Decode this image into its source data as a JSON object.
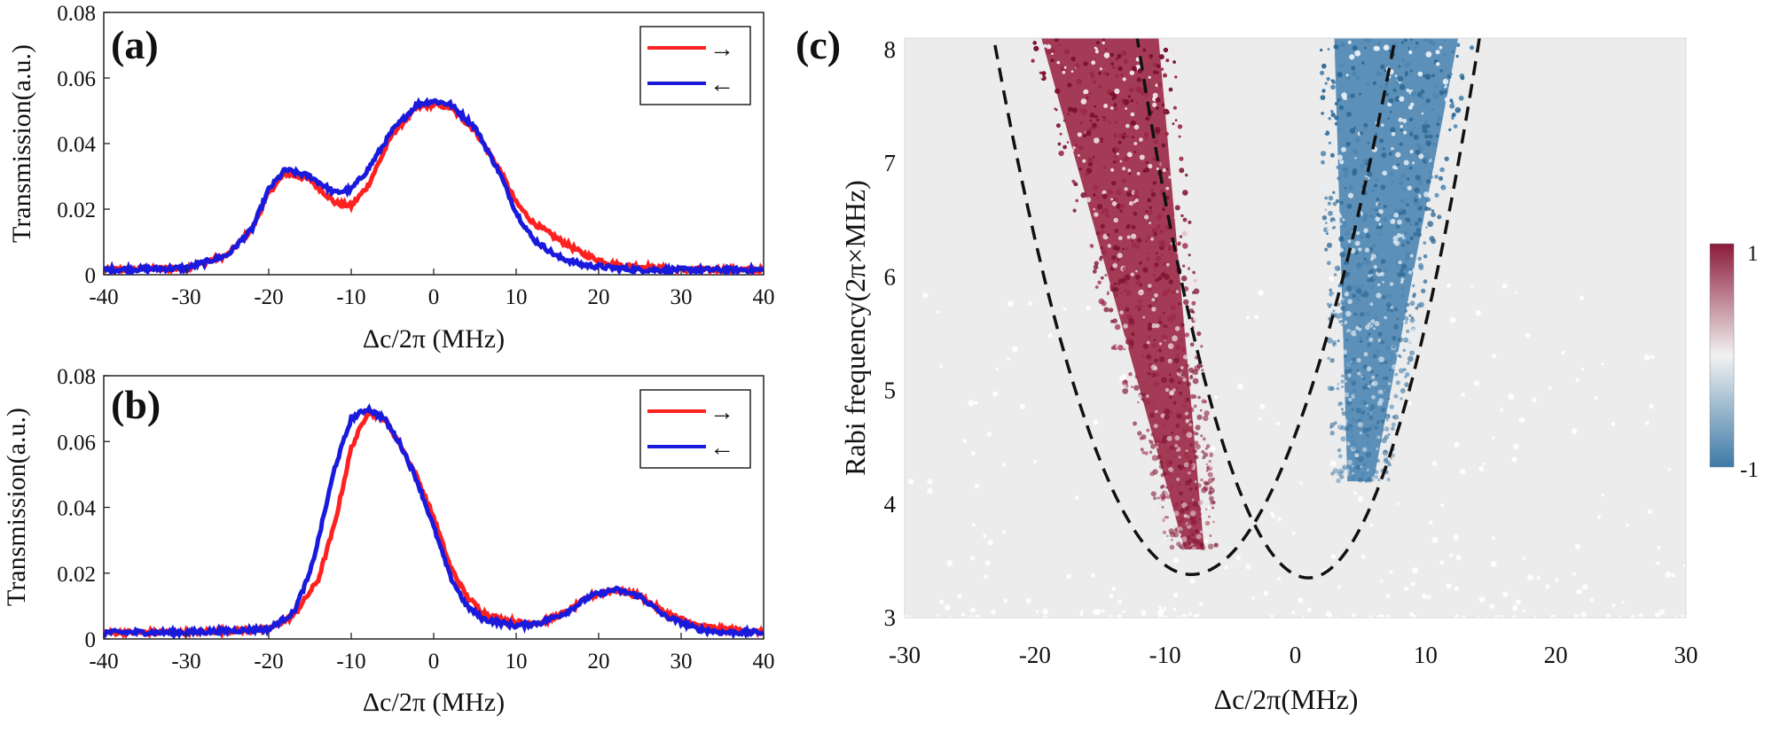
{
  "chart_data": [
    {
      "panel_label": "(a)",
      "type": "line",
      "xlabel": "Δc/2π (MHz)",
      "ylabel": "Transmission(a.u.)",
      "xlim": [
        -40,
        40
      ],
      "ylim": [
        0,
        0.08
      ],
      "xticks": [
        "-40",
        "-30",
        "-20",
        "-10",
        "0",
        "10",
        "20",
        "30",
        "40"
      ],
      "yticks": [
        "0",
        "0.02",
        "0.04",
        "0.06",
        "0.08"
      ],
      "legend_position": "top-right",
      "series": [
        {
          "name": "→",
          "color": "#ff2020",
          "x": [
            -40,
            -30,
            -25,
            -22,
            -20,
            -18,
            -15,
            -12,
            -10,
            -8,
            -5,
            -2,
            0,
            2,
            5,
            8,
            10,
            12,
            15,
            18,
            20,
            22,
            25,
            30,
            40
          ],
          "y": [
            0.0015,
            0.002,
            0.006,
            0.014,
            0.025,
            0.031,
            0.029,
            0.022,
            0.021,
            0.027,
            0.043,
            0.051,
            0.052,
            0.051,
            0.044,
            0.032,
            0.022,
            0.016,
            0.011,
            0.0065,
            0.0045,
            0.003,
            0.0025,
            0.0015,
            0.0015
          ]
        },
        {
          "name": "←",
          "color": "#1a1adc",
          "x": [
            -40,
            -30,
            -25,
            -22,
            -20,
            -18,
            -15,
            -12,
            -10,
            -8,
            -5,
            -2,
            0,
            2,
            5,
            8,
            10,
            12,
            15,
            18,
            20,
            22,
            25,
            30,
            40
          ],
          "y": [
            0.0015,
            0.002,
            0.006,
            0.014,
            0.026,
            0.032,
            0.03,
            0.025,
            0.026,
            0.032,
            0.044,
            0.052,
            0.053,
            0.052,
            0.045,
            0.031,
            0.019,
            0.011,
            0.0055,
            0.003,
            0.0025,
            0.002,
            0.0015,
            0.0015,
            0.0015
          ]
        }
      ]
    },
    {
      "panel_label": "(b)",
      "type": "line",
      "xlabel": "Δc/2π (MHz)",
      "ylabel": "Transmission(a.u.)",
      "xlim": [
        -40,
        40
      ],
      "ylim": [
        0,
        0.08
      ],
      "xticks": [
        "-40",
        "-30",
        "-20",
        "-10",
        "0",
        "10",
        "20",
        "30",
        "40"
      ],
      "yticks": [
        "0",
        "0.02",
        "0.04",
        "0.06",
        "0.08"
      ],
      "legend_position": "top-right",
      "series": [
        {
          "name": "→",
          "color": "#ff2020",
          "x": [
            -40,
            -30,
            -20,
            -17,
            -14,
            -12,
            -10,
            -8,
            -6,
            -4,
            -2,
            0,
            2,
            4,
            6,
            8,
            10,
            13,
            16,
            19,
            22,
            25,
            28,
            32,
            35,
            40
          ],
          "y": [
            0.002,
            0.002,
            0.003,
            0.007,
            0.018,
            0.035,
            0.058,
            0.069,
            0.067,
            0.059,
            0.049,
            0.037,
            0.022,
            0.013,
            0.008,
            0.006,
            0.005,
            0.005,
            0.008,
            0.013,
            0.015,
            0.013,
            0.008,
            0.004,
            0.003,
            0.002
          ]
        },
        {
          "name": "←",
          "color": "#1a1adc",
          "x": [
            -40,
            -30,
            -20,
            -17,
            -15,
            -14,
            -12,
            -10,
            -8,
            -6,
            -4,
            -2,
            0,
            2,
            4,
            6,
            8,
            10,
            13,
            16,
            19,
            22,
            25,
            28,
            32,
            35,
            40
          ],
          "y": [
            0.002,
            0.002,
            0.003,
            0.008,
            0.02,
            0.03,
            0.052,
            0.067,
            0.07,
            0.067,
            0.059,
            0.048,
            0.034,
            0.019,
            0.01,
            0.006,
            0.005,
            0.004,
            0.005,
            0.008,
            0.013,
            0.015,
            0.013,
            0.007,
            0.003,
            0.002,
            0.002
          ]
        }
      ]
    },
    {
      "panel_label": "(c)",
      "type": "heatmap",
      "xlabel": "Δc/2π(MHz)",
      "ylabel": "Rabi frequency(2π×MHz)",
      "xlim": [
        -30,
        30
      ],
      "ylim": [
        3,
        8.1
      ],
      "xticks": [
        "-30",
        "-20",
        "-10",
        "0",
        "10",
        "20",
        "30"
      ],
      "yticks": [
        "3",
        "4",
        "5",
        "6",
        "7",
        "8"
      ],
      "colorbar": {
        "min_label": "-1",
        "max_label": "1",
        "min_color": "#3d79a6",
        "mid_color": "#f2f2f2",
        "max_color": "#8b1a3a"
      },
      "regions": [
        {
          "value": 1,
          "description_level": "positive",
          "x_at_top": [
            -19.5,
            -10.5
          ],
          "x_at_bottom": [
            -8.5,
            -7
          ],
          "y_range": [
            3.6,
            8.1
          ]
        },
        {
          "value": -1,
          "description_level": "negative",
          "x_at_top": [
            3,
            12.5
          ],
          "x_at_bottom": [
            4,
            6
          ],
          "y_range": [
            4.2,
            8.1
          ]
        }
      ],
      "dashed_parabolas": [
        {
          "vertex_x": -8,
          "vertex_y": 3.38,
          "x_at_y8": [
            -23,
            7.5
          ]
        },
        {
          "vertex_x": 1,
          "vertex_y": 3.35,
          "x_at_y8": [
            -12,
            14
          ]
        }
      ]
    }
  ]
}
